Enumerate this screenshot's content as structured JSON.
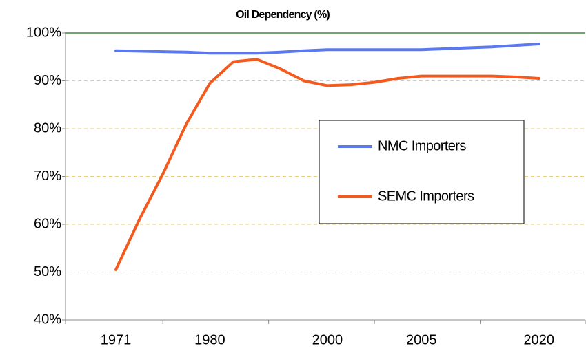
{
  "chart_data": {
    "type": "line",
    "title": "Oil Dependency (%)",
    "categories": [
      "1971",
      null,
      null,
      null,
      "1980",
      null,
      null,
      null,
      null,
      "2000",
      null,
      null,
      null,
      "2005",
      null,
      null,
      null,
      null,
      "2020"
    ],
    "series": [
      {
        "name": "NMC Importers",
        "color": "#5b78f0",
        "values": [
          96.3,
          96.2,
          96.1,
          96.0,
          95.8,
          95.8,
          95.8,
          96.0,
          96.3,
          96.5,
          96.5,
          96.5,
          96.5,
          96.5,
          96.7,
          96.9,
          97.1,
          97.4,
          97.7
        ]
      },
      {
        "name": "SEMC Importers",
        "color": "#f45a1e",
        "values": [
          50.5,
          61,
          70.5,
          81,
          89.5,
          94,
          94.5,
          92.5,
          90,
          89,
          89.2,
          89.7,
          90.5,
          91,
          91,
          91,
          91,
          90.8,
          90.5
        ]
      }
    ],
    "ylim": [
      40,
      100
    ],
    "yticks": [
      {
        "value": 40,
        "label": "40%"
      },
      {
        "value": 50,
        "label": "50%"
      },
      {
        "value": 60,
        "label": "60%"
      },
      {
        "value": 70,
        "label": "70%"
      },
      {
        "value": 80,
        "label": "80%"
      },
      {
        "value": 90,
        "label": "90%"
      },
      {
        "value": 100,
        "label": "100%"
      }
    ],
    "grid": true,
    "legend": "right"
  }
}
